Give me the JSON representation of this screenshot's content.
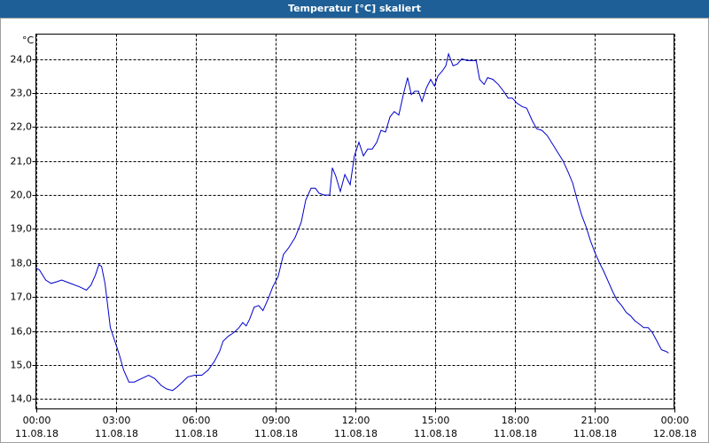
{
  "chart_data": {
    "type": "line",
    "title": "Temperatur [°C] skaliert",
    "y_label": "°C",
    "x": [
      0,
      0.13,
      0.37,
      0.57,
      0.8,
      0.97,
      1.3,
      1.64,
      1.9,
      2.07,
      2.24,
      2.37,
      2.47,
      2.6,
      2.7,
      2.8,
      2.97,
      3.14,
      3.3,
      3.5,
      3.7,
      3.97,
      4.24,
      4.47,
      4.71,
      4.91,
      5.14,
      5.31,
      5.51,
      5.71,
      5.97,
      6.24,
      6.48,
      6.71,
      6.91,
      7.04,
      7.24,
      7.44,
      7.64,
      7.78,
      7.91,
      8.04,
      8.21,
      8.38,
      8.54,
      8.74,
      8.91,
      9.11,
      9.31,
      9.51,
      9.75,
      9.98,
      10.15,
      10.35,
      10.51,
      10.65,
      10.85,
      11.05,
      11.15,
      11.28,
      11.45,
      11.62,
      11.82,
      11.98,
      12.15,
      12.32,
      12.48,
      12.65,
      12.82,
      12.98,
      13.15,
      13.32,
      13.48,
      13.65,
      13.82,
      13.98,
      14.12,
      14.25,
      14.39,
      14.52,
      14.69,
      14.85,
      14.99,
      15.12,
      15.29,
      15.42,
      15.52,
      15.69,
      15.85,
      16.02,
      16.22,
      16.42,
      16.56,
      16.69,
      16.86,
      16.99,
      17.19,
      17.39,
      17.59,
      17.76,
      17.92,
      18.09,
      18.29,
      18.46,
      18.66,
      18.83,
      19.03,
      19.23,
      19.43,
      19.63,
      19.83,
      20.03,
      20.19,
      20.36,
      20.53,
      20.7,
      20.86,
      21.03,
      21.2,
      21.36,
      21.53,
      21.7,
      21.86,
      22.03,
      22.2,
      22.36,
      22.53,
      22.7,
      22.86,
      23.03,
      23.19,
      23.36,
      23.53,
      23.7,
      23.8
    ],
    "series": [
      {
        "name": "Temperatur",
        "color": "#0000cc",
        "values": [
          17.85,
          17.8,
          17.5,
          17.4,
          17.45,
          17.5,
          17.4,
          17.3,
          17.2,
          17.35,
          17.65,
          17.95,
          17.9,
          17.4,
          16.75,
          16.1,
          15.7,
          15.3,
          14.85,
          14.5,
          14.5,
          14.6,
          14.7,
          14.6,
          14.4,
          14.3,
          14.25,
          14.35,
          14.5,
          14.65,
          14.7,
          14.7,
          14.85,
          15.1,
          15.4,
          15.7,
          15.85,
          15.95,
          16.1,
          16.25,
          16.15,
          16.35,
          16.7,
          16.75,
          16.6,
          16.95,
          17.3,
          17.6,
          18.25,
          18.45,
          18.75,
          19.2,
          19.85,
          20.2,
          20.2,
          20.05,
          20.0,
          20.0,
          20.8,
          20.55,
          20.1,
          20.6,
          20.3,
          21.15,
          21.55,
          21.15,
          21.35,
          21.35,
          21.55,
          21.9,
          21.85,
          22.3,
          22.45,
          22.35,
          22.95,
          23.45,
          22.95,
          23.05,
          23.05,
          22.75,
          23.15,
          23.4,
          23.2,
          23.5,
          23.65,
          23.8,
          24.15,
          23.8,
          23.85,
          24.0,
          23.95,
          23.95,
          23.95,
          23.4,
          23.25,
          23.45,
          23.4,
          23.25,
          23.05,
          22.85,
          22.85,
          22.7,
          22.6,
          22.55,
          22.2,
          21.95,
          21.9,
          21.75,
          21.5,
          21.25,
          21.0,
          20.65,
          20.35,
          19.85,
          19.4,
          19.05,
          18.65,
          18.3,
          18.0,
          17.75,
          17.45,
          17.15,
          16.9,
          16.75,
          16.55,
          16.45,
          16.3,
          16.2,
          16.1,
          16.1,
          15.95,
          15.7,
          15.45,
          15.4,
          15.35
        ]
      }
    ],
    "xlim": [
      0,
      24
    ],
    "xticks": [
      {
        "value": 0,
        "label": "00:00\n11.08.18"
      },
      {
        "value": 3,
        "label": "03:00\n11.08.18"
      },
      {
        "value": 6,
        "label": "06:00\n11.08.18"
      },
      {
        "value": 9,
        "label": "09:00\n11.08.18"
      },
      {
        "value": 12,
        "label": "12:00\n11.08.18"
      },
      {
        "value": 15,
        "label": "15:00\n11.08.18"
      },
      {
        "value": 18,
        "label": "18:00\n11.08.18"
      },
      {
        "value": 21,
        "label": "21:00\n11.08.18"
      },
      {
        "value": 24,
        "label": "00:00\n12.08.18"
      }
    ],
    "ylim": [
      13.71,
      24.73
    ],
    "yticks": [
      {
        "value": 14,
        "label": "14,0"
      },
      {
        "value": 15,
        "label": "15,0"
      },
      {
        "value": 16,
        "label": "16,0"
      },
      {
        "value": 17,
        "label": "17,0"
      },
      {
        "value": 18,
        "label": "18,0"
      },
      {
        "value": 19,
        "label": "19,0"
      },
      {
        "value": 20,
        "label": "20,0"
      },
      {
        "value": 21,
        "label": "21,0"
      },
      {
        "value": 22,
        "label": "22,0"
      },
      {
        "value": 23,
        "label": "23,0"
      },
      {
        "value": 24,
        "label": "24,0"
      }
    ],
    "grid": true
  }
}
